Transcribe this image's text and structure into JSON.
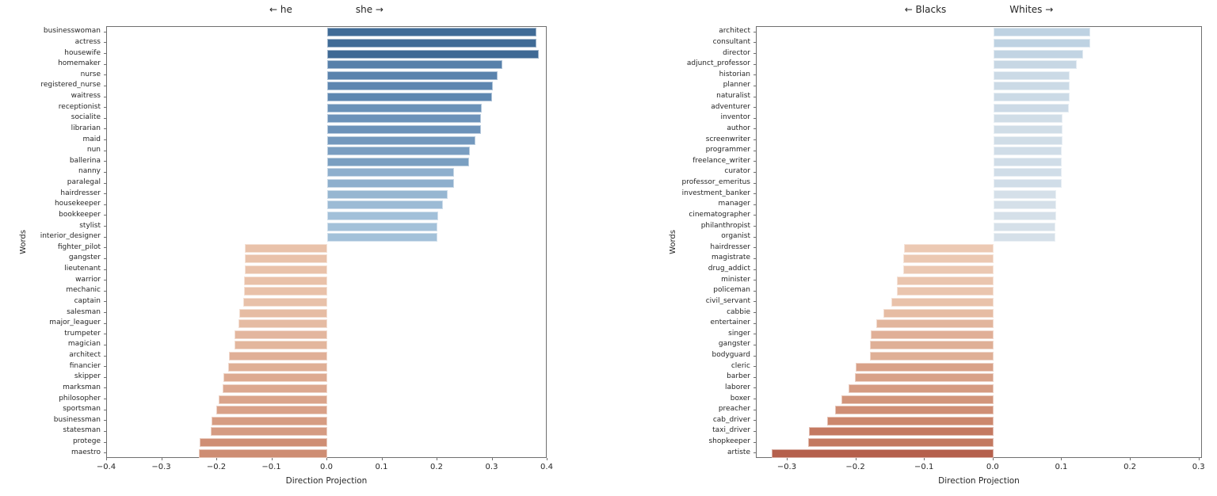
{
  "figure": {
    "background": "#ffffff",
    "text_color": "#262626",
    "spine_color": "#707070"
  },
  "colors": {
    "diverging_stops": [
      [
        -0.35,
        "#ad5342"
      ],
      [
        -0.25,
        "#c98268"
      ],
      [
        -0.15,
        "#e9c2aa"
      ],
      [
        -0.05,
        "#f6e3d5"
      ],
      [
        0.05,
        "#e8edf2"
      ],
      [
        0.09,
        "#d5e0e9"
      ],
      [
        0.2,
        "#a3c1d9"
      ],
      [
        0.3,
        "#5d86b0"
      ],
      [
        0.4,
        "#39648f"
      ]
    ]
  },
  "chart_data": [
    {
      "type": "bar",
      "orientation": "horizontal",
      "title_left": "← he",
      "title_right": "she →",
      "xlabel": "Direction Projection",
      "ylabel": "Words",
      "xlim": [
        -0.4,
        0.4
      ],
      "xticks": [
        -0.4,
        -0.3,
        -0.2,
        -0.1,
        0.0,
        0.1,
        0.2,
        0.3,
        0.4
      ],
      "xtick_labels": [
        "−0.4",
        "−0.3",
        "−0.2",
        "−0.1",
        "0.0",
        "0.1",
        "0.2",
        "0.3",
        "0.4"
      ],
      "grid": false,
      "legend": null,
      "categories": [
        "businesswoman",
        "actress",
        "housewife",
        "homemaker",
        "nurse",
        "registered_nurse",
        "waitress",
        "receptionist",
        "socialite",
        "librarian",
        "maid",
        "nun",
        "ballerina",
        "nanny",
        "paralegal",
        "hairdresser",
        "housekeeper",
        "bookkeeper",
        "stylist",
        "interior_designer",
        "fighter_pilot",
        "gangster",
        "lieutenant",
        "warrior",
        "mechanic",
        "captain",
        "salesman",
        "major_leaguer",
        "trumpeter",
        "magician",
        "architect",
        "financier",
        "skipper",
        "marksman",
        "philosopher",
        "sportsman",
        "businessman",
        "statesman",
        "protege",
        "maestro"
      ],
      "values": [
        0.38,
        0.38,
        0.384,
        0.318,
        0.309,
        0.3,
        0.299,
        0.28,
        0.279,
        0.279,
        0.269,
        0.259,
        0.258,
        0.23,
        0.23,
        0.219,
        0.21,
        0.201,
        0.2,
        0.2,
        -0.149,
        -0.15,
        -0.15,
        -0.151,
        -0.151,
        -0.152,
        -0.16,
        -0.161,
        -0.168,
        -0.169,
        -0.179,
        -0.18,
        -0.188,
        -0.19,
        -0.197,
        -0.201,
        -0.21,
        -0.211,
        -0.232,
        -0.233
      ]
    },
    {
      "type": "bar",
      "orientation": "horizontal",
      "title_left": "← Blacks",
      "title_right": "Whites →",
      "xlabel": "Direction Projection",
      "ylabel": "Words",
      "xlim": [
        -0.345,
        0.305
      ],
      "xticks": [
        -0.3,
        -0.2,
        -0.1,
        0.0,
        0.1,
        0.2,
        0.3
      ],
      "xtick_labels": [
        "−0.3",
        "−0.2",
        "−0.1",
        "0.0",
        "0.1",
        "0.2",
        "0.3"
      ],
      "grid": false,
      "legend": null,
      "categories": [
        "architect",
        "consultant",
        "director",
        "adjunct_professor",
        "historian",
        "planner",
        "naturalist",
        "adventurer",
        "inventor",
        "author",
        "screenwriter",
        "programmer",
        "freelance_writer",
        "curator",
        "professor_emeritus",
        "investment_banker",
        "manager",
        "cinematographer",
        "philanthropist",
        "organist",
        "hairdresser",
        "magistrate",
        "drug_addict",
        "minister",
        "policeman",
        "civil_servant",
        "cabbie",
        "entertainer",
        "singer",
        "gangster",
        "bodyguard",
        "cleric",
        "barber",
        "laborer",
        "boxer",
        "preacher",
        "cab_driver",
        "taxi_driver",
        "shopkeeper",
        "artiste"
      ],
      "values": [
        0.141,
        0.141,
        0.131,
        0.121,
        0.111,
        0.111,
        0.111,
        0.11,
        0.101,
        0.101,
        0.101,
        0.1,
        0.1,
        0.1,
        0.1,
        0.091,
        0.091,
        0.091,
        0.09,
        0.09,
        -0.13,
        -0.131,
        -0.131,
        -0.141,
        -0.141,
        -0.149,
        -0.16,
        -0.171,
        -0.179,
        -0.18,
        -0.18,
        -0.201,
        -0.202,
        -0.211,
        -0.221,
        -0.231,
        -0.242,
        -0.269,
        -0.27,
        -0.323
      ]
    }
  ]
}
